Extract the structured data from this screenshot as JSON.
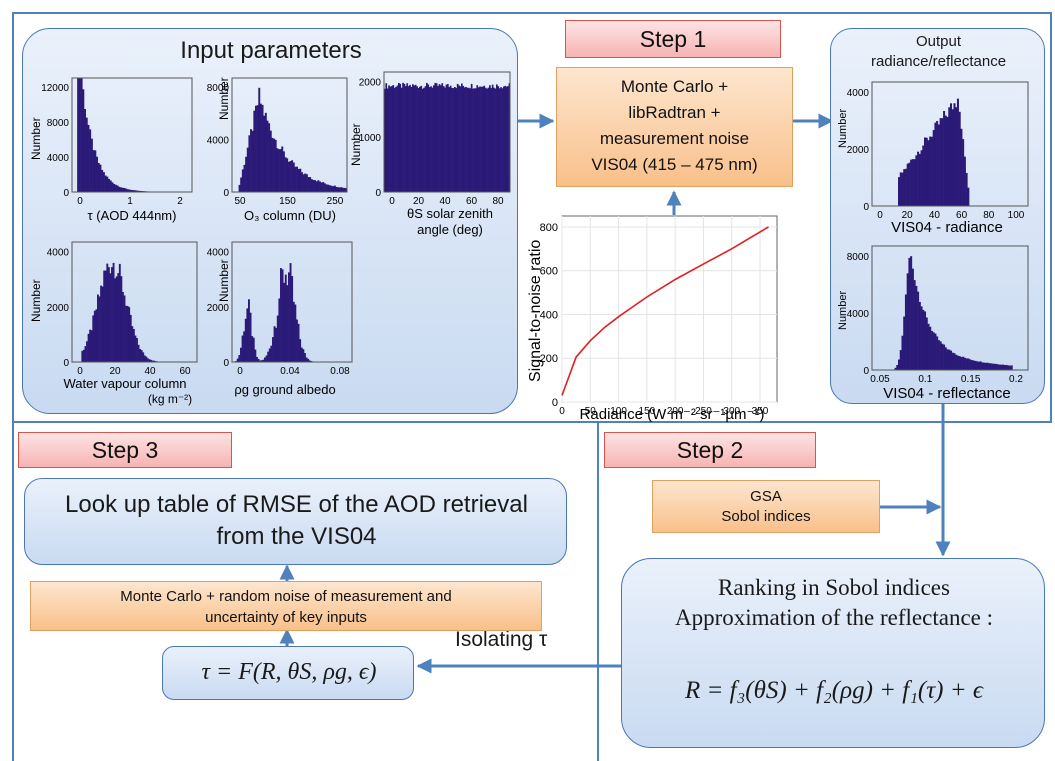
{
  "steps": {
    "step1": "Step 1",
    "step2": "Step 2",
    "step3": "Step 3"
  },
  "input_panel": {
    "title": "Input parameters",
    "plots": [
      {
        "ylabel": "Number",
        "yticks": [
          "0",
          "4000",
          "8000",
          "12000"
        ],
        "xticks": [
          "0",
          "1",
          "2"
        ],
        "xlabel": "τ (AOD 444nm)"
      },
      {
        "ylabel": "Number",
        "yticks": [
          "0",
          "4000",
          "8000"
        ],
        "xticks": [
          "50",
          "150",
          "250"
        ],
        "xlabel": "O₃ column (DU)"
      },
      {
        "ylabel": "Number",
        "yticks": [
          "0",
          "1000",
          "2000"
        ],
        "xticks": [
          "0",
          "20",
          "40",
          "60",
          "80"
        ],
        "xlabel1": "θS  solar zenith",
        "xlabel2": "angle (deg)"
      },
      {
        "ylabel": "Number",
        "yticks": [
          "0",
          "2000",
          "4000"
        ],
        "xticks": [
          "0",
          "20",
          "40",
          "60"
        ],
        "xlabel1": "Water vapour column",
        "xlabel2": "(kg m⁻²)"
      },
      {
        "ylabel": "Number",
        "yticks": [
          "0",
          "2000",
          "4000"
        ],
        "xticks": [
          "0",
          "0.04",
          "0.08"
        ],
        "xlabel": "ρg  ground albedo"
      }
    ]
  },
  "step1_box": {
    "line1": "Monte Carlo +",
    "line2": "libRadtran +",
    "line3": "measurement noise",
    "line4": "VIS04 (415 – 475 nm)"
  },
  "snr_chart": {
    "ylabel": "Signal-to-noise ratio",
    "xlabel": "Radiance (W m⁻² sr⁻¹µm⁻¹)",
    "yticks": [
      "0",
      "200",
      "400",
      "600",
      "800"
    ],
    "xticks": [
      "0",
      "50",
      "100",
      "150",
      "200",
      "250",
      "300",
      "350"
    ]
  },
  "output_panel": {
    "title1": "Output",
    "title2": "radiance/reflectance",
    "radiance": {
      "ylabel": "Number",
      "yticks": [
        "0",
        "2000",
        "4000"
      ],
      "xticks": [
        "0",
        "20",
        "40",
        "60",
        "80",
        "100"
      ],
      "xlabel": "VIS04 - radiance"
    },
    "reflectance": {
      "ylabel": "Number",
      "yticks": [
        "0",
        "4000",
        "8000"
      ],
      "xticks": [
        "0.05",
        "0.1",
        "0.15",
        "0.2"
      ],
      "xlabel": "VIS04 - reflectance"
    }
  },
  "gsa_box": {
    "line1": "GSA",
    "line2": "Sobol indices"
  },
  "ranking_box": {
    "line1": "Ranking in Sobol indices",
    "line2": "Approximation of the reflectance :",
    "formula": "R = f₃(θS) + f₂(ρg) + f₁(τ) + ϵ"
  },
  "isolating_label": "Isolating τ",
  "tau_box": {
    "formula": "τ = F(R, θS, ρg, ϵ)"
  },
  "mc_box": {
    "line1": "Monte Carlo  + random noise of measurement and",
    "line2": "uncertainty of key inputs"
  },
  "lut_box": {
    "line1": "Look up table of RMSE of the AOD retrieval",
    "line2": "from the VIS04"
  },
  "chart_data": {
    "type": "line",
    "x": [
      0,
      25,
      50,
      75,
      100,
      150,
      200,
      250,
      300,
      365
    ],
    "series": [
      {
        "values": [
          30,
          205,
          280,
          340,
          390,
          480,
          560,
          630,
          700,
          800
        ]
      }
    ],
    "xlabel": "Radiance (W m⁻² sr⁻¹µm⁻¹)",
    "ylabel": "Signal-to-noise ratio",
    "xlim": [
      0,
      380
    ],
    "ylim": [
      0,
      850
    ],
    "grid": true
  },
  "colors": {
    "accent": "#4f81bd",
    "hist": "#2b1a78",
    "curve": "#e02020",
    "orange": "#f9c08a",
    "step": "#f7b3b3"
  }
}
